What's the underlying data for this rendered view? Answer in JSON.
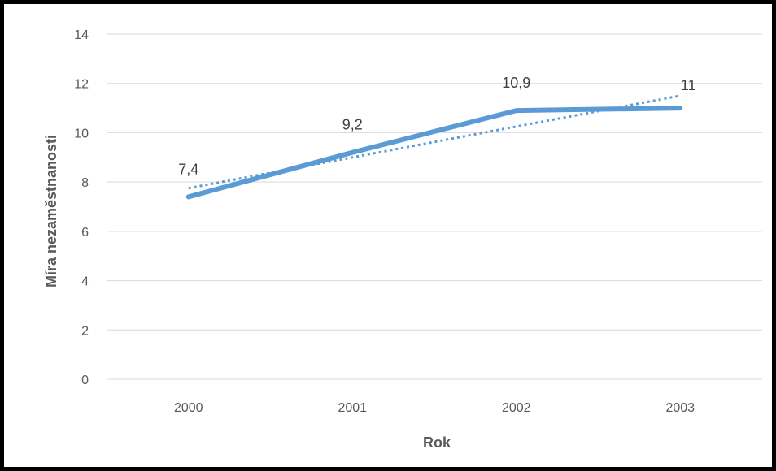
{
  "chart_data": {
    "type": "line",
    "categories": [
      "2000",
      "2001",
      "2002",
      "2003"
    ],
    "series": [
      {
        "values": [
          7.4,
          9.2,
          10.9,
          11.0
        ],
        "data_labels": [
          "7,4",
          "9,2",
          "10,9",
          "11"
        ],
        "color": "#5B9BD5",
        "trendline": "linear",
        "trendline_style": "dotted"
      }
    ],
    "xlabel": "Rok",
    "ylabel": "Míra nezaměstnanosti",
    "ylim": [
      0,
      14
    ],
    "yticks": [
      0,
      2,
      4,
      6,
      8,
      10,
      12,
      14
    ],
    "ytick_labels": [
      "0",
      "2",
      "4",
      "6",
      "8",
      "10",
      "12",
      "14"
    ],
    "grid": "horizontal",
    "legend": "none"
  },
  "colors": {
    "series": "#5B9BD5",
    "gridline": "#D9D9D9",
    "tick_text": "#595959",
    "frame": "#000000"
  }
}
